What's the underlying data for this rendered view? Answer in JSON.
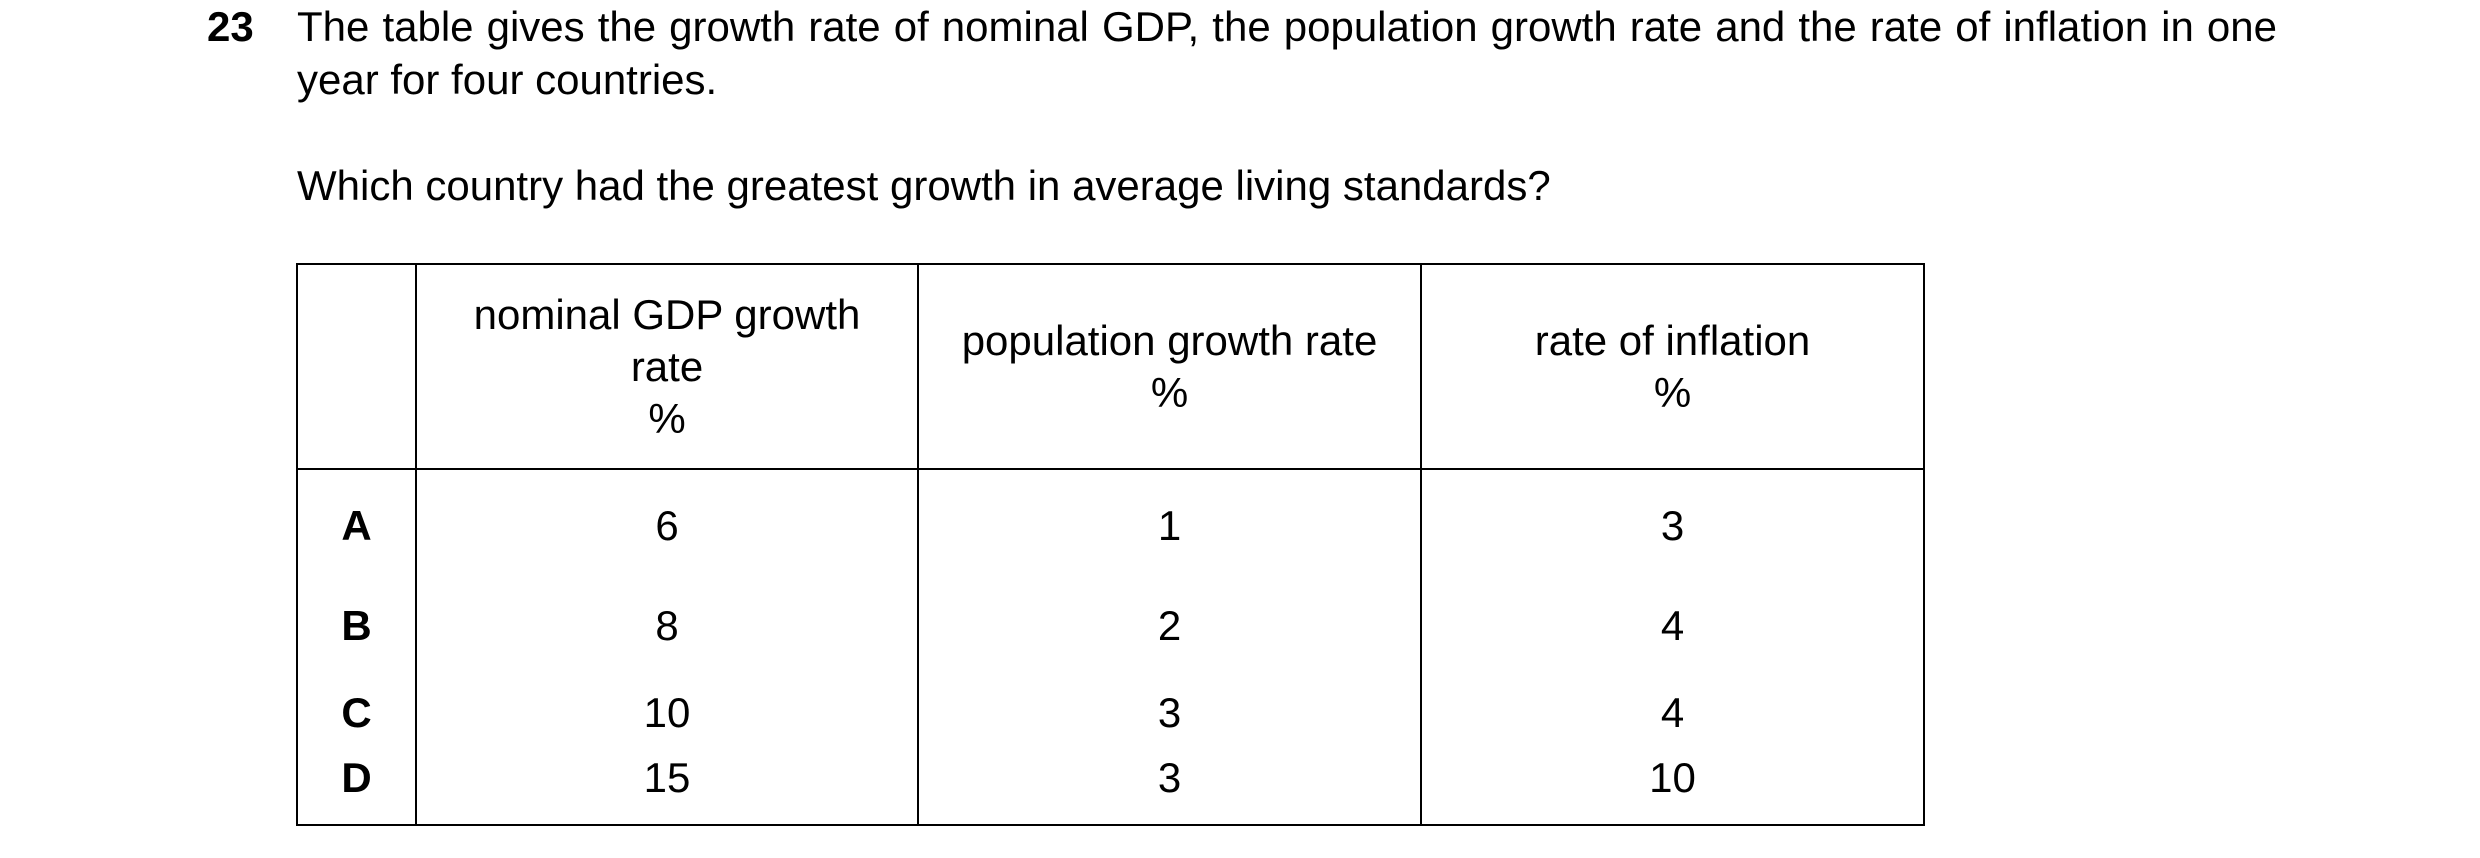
{
  "question": {
    "number": "23",
    "stem": "The table gives the growth rate of nominal GDP, the population growth rate and the rate of inflation in one year for four countries.",
    "prompt": "Which country had the greatest growth in average living standards?"
  },
  "table": {
    "headers": [
      "",
      [
        "nominal GDP growth",
        "rate",
        "%"
      ],
      [
        "population growth rate",
        "%"
      ],
      [
        "rate of inflation",
        "%"
      ]
    ],
    "rows": [
      {
        "label": "A",
        "nominal_gdp_growth": "6",
        "population_growth": "1",
        "inflation": "3"
      },
      {
        "label": "B",
        "nominal_gdp_growth": "8",
        "population_growth": "2",
        "inflation": "4"
      },
      {
        "label": "C",
        "nominal_gdp_growth": "10",
        "population_growth": "3",
        "inflation": "4"
      },
      {
        "label": "D",
        "nominal_gdp_growth": "15",
        "population_growth": "3",
        "inflation": "10"
      }
    ]
  }
}
